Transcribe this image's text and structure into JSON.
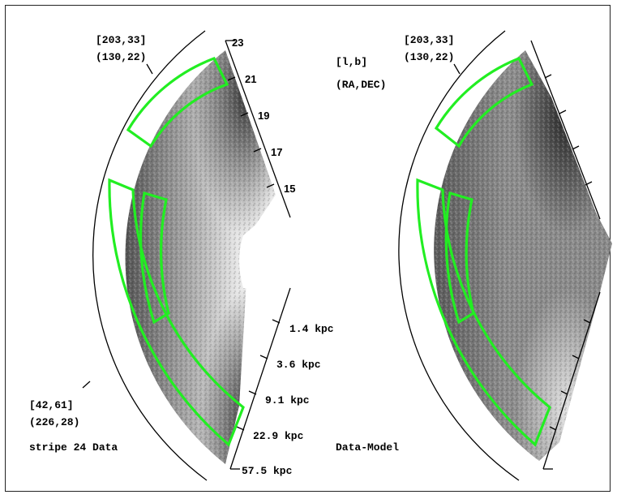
{
  "left_panel": {
    "coord_top_lb": "[203,33]",
    "coord_top_radec": "(130,22)",
    "coord_bottom_lb": "[42,61]",
    "coord_bottom_radec": "(226,28)",
    "caption": "stripe 24 Data",
    "magnitude_ticks": [
      "23",
      "21",
      "19",
      "17",
      "15"
    ],
    "distance_ticks": [
      "1.4 kpc",
      "3.6 kpc",
      "9.1 kpc",
      "22.9 kpc",
      "57.5 kpc"
    ]
  },
  "right_panel": {
    "coord_top_lb": "[203,33]",
    "coord_top_radec": "(130,22)",
    "legend_lb": "[l,b]",
    "legend_radec": "(RA,DEC)",
    "caption": "Data-Model"
  },
  "colors": {
    "selection_box": "#22ee22",
    "axis": "#000000"
  }
}
